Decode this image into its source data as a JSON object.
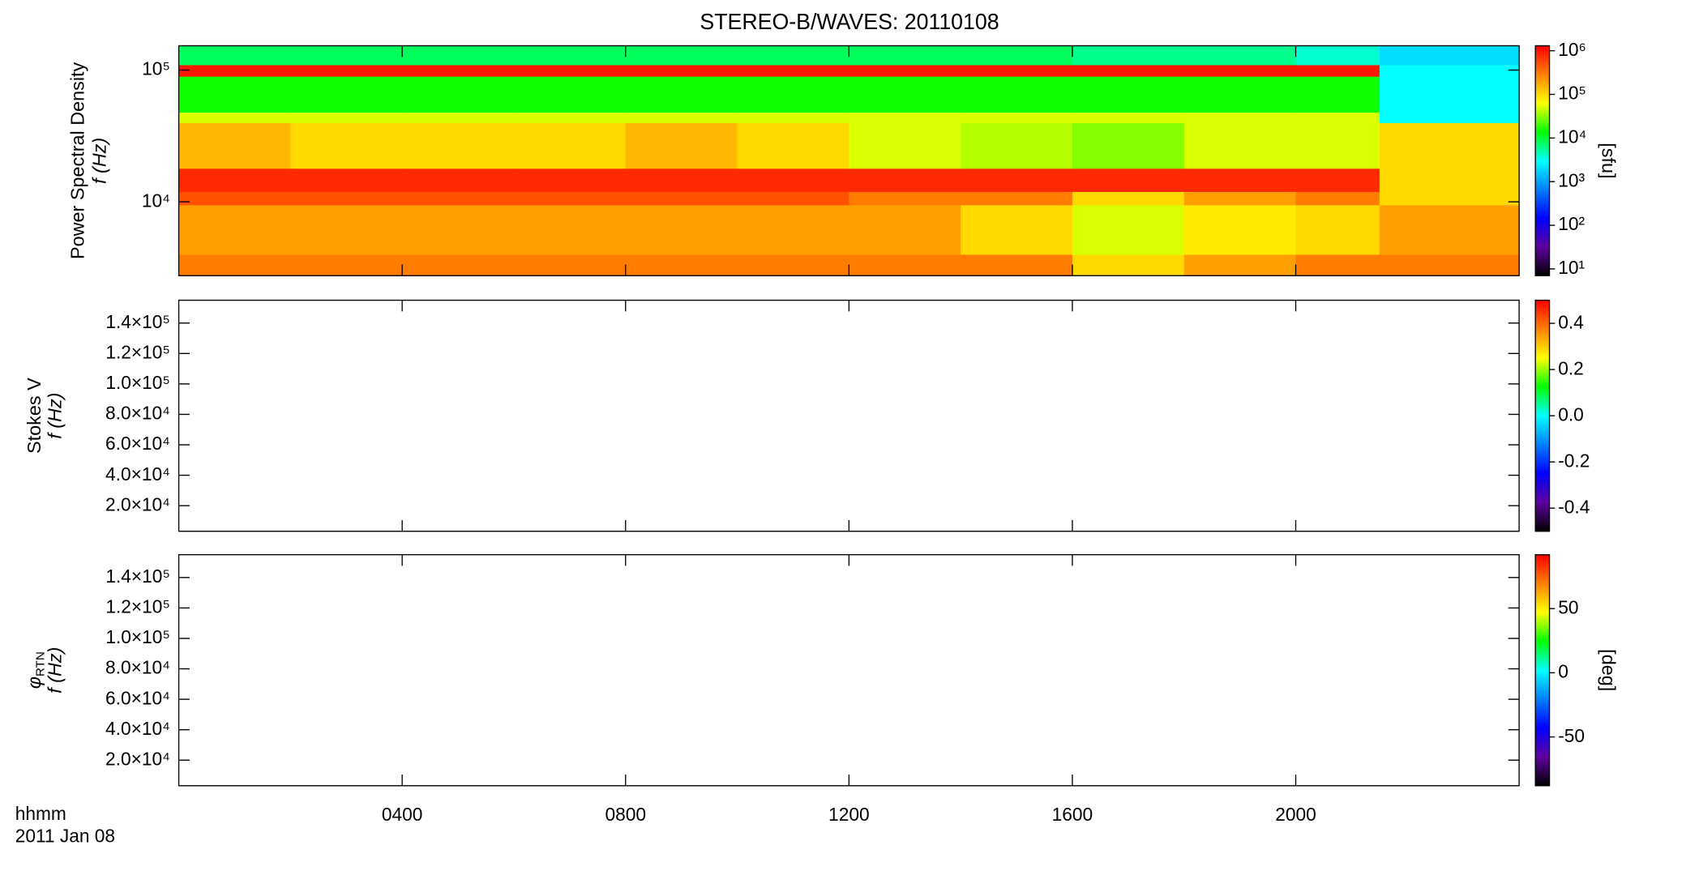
{
  "title": "STEREO-B/WAVES: 20110108",
  "time_label": "hhmm",
  "date_label": "2011 Jan 08",
  "chart_data": [
    {
      "type": "heatmap",
      "ylabel": "Power Spectral Density",
      "ylabel2": "f (Hz)",
      "yscale": "log",
      "ylim": [
        2750,
        153000
      ],
      "yticks": [
        {
          "value": 10000,
          "label": "10⁴"
        },
        {
          "value": 100000,
          "label": "10⁵"
        }
      ],
      "xlim": [
        0,
        24
      ],
      "xticks": [
        4,
        8,
        12,
        16,
        20
      ],
      "x_bins": [
        0,
        2,
        4,
        6,
        8,
        10,
        12,
        14,
        16,
        18,
        20,
        21.5,
        24
      ],
      "y_bins": [
        2750,
        4000,
        9500,
        12000,
        18000,
        40000,
        48000,
        90000,
        110000,
        153000
      ],
      "z": [
        [
          300000,
          300000,
          300000,
          300000,
          300000,
          300000,
          300000,
          300000,
          100000,
          200000,
          300000,
          300000
        ],
        [
          200000,
          200000,
          200000,
          200000,
          200000,
          200000,
          200000,
          100000,
          50000,
          80000,
          100000,
          200000
        ],
        [
          500000,
          500000,
          500000,
          500000,
          500000,
          500000,
          300000,
          300000,
          100000,
          200000,
          300000,
          100000
        ],
        [
          800000,
          800000,
          800000,
          800000,
          800000,
          800000,
          800000,
          800000,
          800000,
          800000,
          800000,
          100000
        ],
        [
          150000,
          100000,
          100000,
          100000,
          150000,
          100000,
          50000,
          40000,
          30000,
          50000,
          50000,
          100000
        ],
        [
          50000,
          50000,
          50000,
          50000,
          50000,
          50000,
          50000,
          50000,
          50000,
          50000,
          50000,
          3000
        ],
        [
          15000,
          15000,
          15000,
          15000,
          15000,
          15000,
          15000,
          15000,
          15000,
          15000,
          15000,
          3000
        ],
        [
          1000000,
          1000000,
          1000000,
          1000000,
          1000000,
          1000000,
          1000000,
          1000000,
          1000000,
          1000000,
          1000000,
          3000
        ],
        [
          8000,
          8000,
          8000,
          8000,
          8000,
          8000,
          8000,
          8000,
          6000,
          6000,
          4000,
          2000
        ]
      ],
      "cscale": "log",
      "clim": [
        7,
        1300000
      ],
      "cticks": [
        {
          "value": 10,
          "label": "10¹"
        },
        {
          "value": 100,
          "label": "10²"
        },
        {
          "value": 1000,
          "label": "10³"
        },
        {
          "value": 10000,
          "label": "10⁴"
        },
        {
          "value": 100000,
          "label": "10⁵"
        },
        {
          "value": 1000000,
          "label": "10⁶"
        }
      ],
      "clabel": "[sfu]",
      "colormap": [
        "#000000",
        "#6000a0",
        "#0000ff",
        "#0080ff",
        "#00ffff",
        "#00ff00",
        "#ffff00",
        "#ff8000",
        "#ff0000"
      ]
    },
    {
      "type": "heatmap",
      "ylabel": "Stokes V",
      "ylabel2": "f (Hz)",
      "yscale": "linear",
      "ylim": [
        3200,
        155000
      ],
      "yticks": [
        {
          "value": 20000,
          "label": "2.0×10⁴"
        },
        {
          "value": 40000,
          "label": "4.0×10⁴"
        },
        {
          "value": 60000,
          "label": "6.0×10⁴"
        },
        {
          "value": 80000,
          "label": "8.0×10⁴"
        },
        {
          "value": 100000,
          "label": "1.0×10⁵"
        },
        {
          "value": 120000,
          "label": "1.2×10⁵"
        },
        {
          "value": 140000,
          "label": "1.4×10⁵"
        }
      ],
      "xlim": [
        0,
        24
      ],
      "xticks": [
        4,
        8,
        12,
        16,
        20
      ],
      "cscale": "linear",
      "clim": [
        -0.5,
        0.5
      ],
      "cticks": [
        -0.4,
        -0.2,
        {
          "value": 0,
          "label": "0.0"
        },
        0.2,
        0.4
      ],
      "colormap": [
        "#000000",
        "#6000a0",
        "#0000ff",
        "#0080ff",
        "#00ffff",
        "#00ff00",
        "#ffff00",
        "#ff8000",
        "#ff0000"
      ]
    },
    {
      "type": "heatmap",
      "ylabel": "φ",
      "ylabel_sub": "RTN",
      "ylabel2": "f (Hz)",
      "yscale": "linear",
      "ylim": [
        3200,
        155000
      ],
      "yticks": [
        {
          "value": 20000,
          "label": "2.0×10⁴"
        },
        {
          "value": 40000,
          "label": "4.0×10⁴"
        },
        {
          "value": 60000,
          "label": "6.0×10⁴"
        },
        {
          "value": 80000,
          "label": "8.0×10⁴"
        },
        {
          "value": 100000,
          "label": "1.0×10⁵"
        },
        {
          "value": 120000,
          "label": "1.2×10⁵"
        },
        {
          "value": 140000,
          "label": "1.4×10⁵"
        }
      ],
      "xlim": [
        0,
        24
      ],
      "xticks": [
        {
          "value": 4,
          "label": "0400"
        },
        {
          "value": 8,
          "label": "0800"
        },
        {
          "value": 12,
          "label": "1200"
        },
        {
          "value": 16,
          "label": "1600"
        },
        {
          "value": 20,
          "label": "2000"
        }
      ],
      "cscale": "linear",
      "clim": [
        -88,
        92
      ],
      "cticks": [
        -50,
        0,
        50
      ],
      "clabel": "[deg]",
      "colormap": [
        "#000000",
        "#6000a0",
        "#0000ff",
        "#0080ff",
        "#00ffff",
        "#00ff00",
        "#ffff00",
        "#ff8000",
        "#ff0000"
      ]
    }
  ]
}
